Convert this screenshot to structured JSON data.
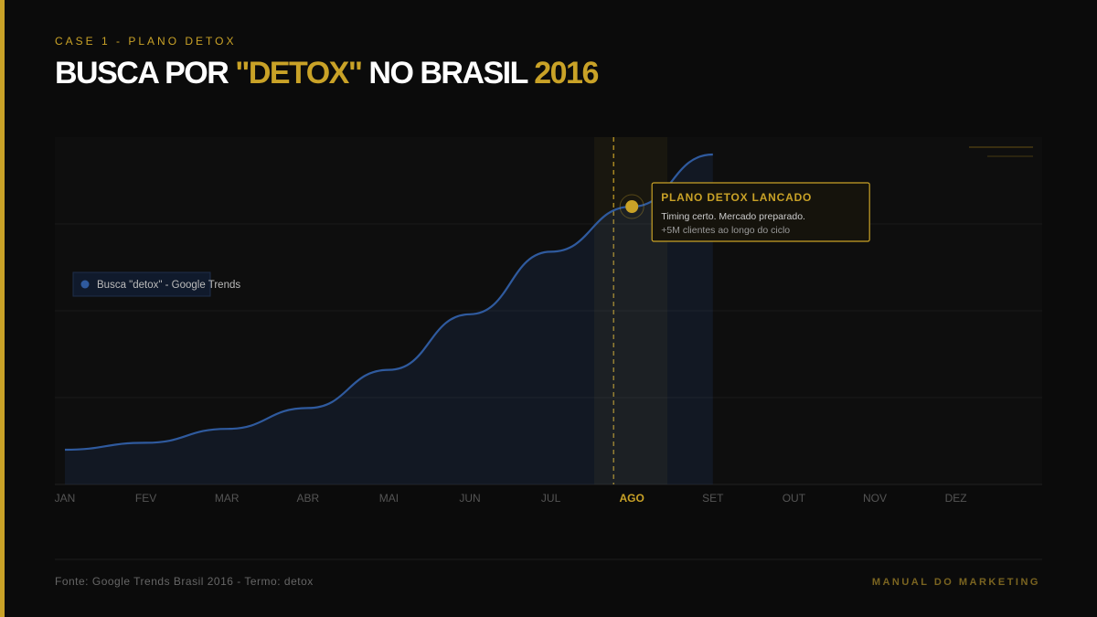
{
  "header": {
    "kicker": "CASE 1 - PLANO DETOX",
    "title": [
      "BUSCA POR ",
      "\"DETOX\"",
      " NO BRASIL ",
      "2016"
    ]
  },
  "chart_data": {
    "type": "line",
    "categories": [
      "JAN",
      "FEV",
      "MAR",
      "ABR",
      "MAI",
      "JUN",
      "JUL",
      "AGO",
      "SET",
      "OUT",
      "NOV",
      "DEZ"
    ],
    "series": [
      {
        "name": "Busca \"detox\" - Google Trends",
        "color": "#2f5a9e",
        "values": [
          10,
          12,
          16,
          22,
          33,
          49,
          67,
          80,
          95,
          null,
          null,
          null
        ]
      }
    ],
    "ylim": [
      0,
      100
    ],
    "highlight": "AGO",
    "annotation": {
      "title": "PLANO DETOX LANCADO",
      "lines": [
        "Timing certo. Mercado preparado.",
        "+5M clientes ao longo do ciclo"
      ]
    }
  },
  "footer": {
    "source": "Fonte: Google Trends Brasil 2016 - Termo: detox",
    "brand": "MANUAL DO MARKETING"
  }
}
